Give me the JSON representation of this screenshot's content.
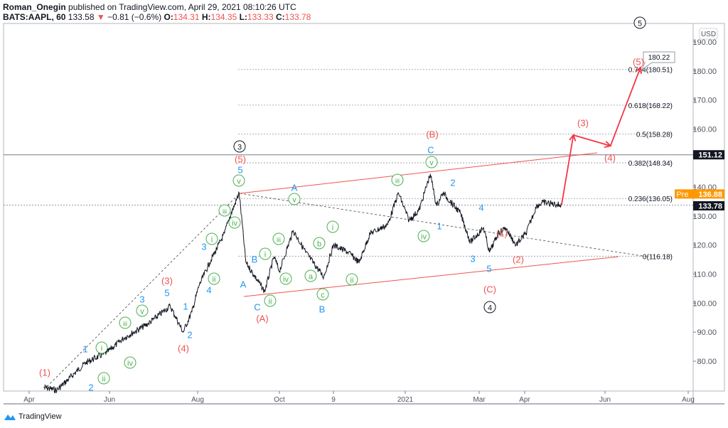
{
  "header": {
    "author": "Roman_Onegin",
    "published": "published on TradingView.com, April 29, 2021 08:10:26 UTC",
    "symbol": "BATS:AAPL, 60",
    "last": "133.58",
    "change": "−0.81 (−0.6%)",
    "open_label": "O:",
    "open": "134.31",
    "high_label": "H:",
    "high": "134.35",
    "low_label": "L:",
    "low": "133.33",
    "close_label": "C:",
    "close": "133.78"
  },
  "footer": {
    "brand": "TradingView"
  },
  "colors": {
    "red": "#ef5350",
    "blue": "#2196f3",
    "green": "#4caf50",
    "black": "#131722",
    "pre": "#ff9800"
  },
  "chart_data": {
    "type": "line",
    "currency": "USD",
    "y_ticks": [
      "190.00",
      "180.00",
      "170.00",
      "160.00",
      "140.00",
      "130.00",
      "120.00",
      "110.00",
      "100.00",
      "90.00",
      "80.00"
    ],
    "x_ticks": [
      "Apr",
      "Jun",
      "Aug",
      "Oct",
      "9",
      "2021",
      "Mar",
      "Apr",
      "Jun",
      "Aug"
    ],
    "ylim": [
      71,
      196
    ],
    "series": [
      {
        "points": [
          [
            "2020-04-12",
            71
          ],
          [
            "2020-04-22",
            70
          ],
          [
            "2020-05-14",
            79.5
          ],
          [
            "2020-05-30",
            83
          ],
          [
            "2020-06-11",
            88
          ],
          [
            "2020-06-28",
            93
          ],
          [
            "2020-07-13",
            99
          ],
          [
            "2020-07-22",
            90
          ],
          [
            "2020-07-28",
            97
          ],
          [
            "2020-08-02",
            106
          ],
          [
            "2020-08-10",
            114
          ],
          [
            "2020-08-21",
            124
          ],
          [
            "2020-08-24",
            128.5
          ],
          [
            "2020-09-01",
            138
          ],
          [
            "2020-09-06",
            114
          ],
          [
            "2020-09-20",
            104
          ],
          [
            "2020-09-27",
            116
          ],
          [
            "2020-10-01",
            111
          ],
          [
            "2020-10-11",
            125
          ],
          [
            "2020-10-20",
            117.5
          ],
          [
            "2020-11-02",
            109
          ],
          [
            "2020-11-09",
            120
          ],
          [
            "2020-11-20",
            117.5
          ],
          [
            "2020-11-28",
            114
          ],
          [
            "2020-12-06",
            124
          ],
          [
            "2020-12-19",
            127
          ],
          [
            "2020-12-27",
            138
          ],
          [
            "2021-01-04",
            128.5
          ],
          [
            "2021-01-12",
            132
          ],
          [
            "2021-01-21",
            144.5
          ],
          [
            "2021-01-26",
            133.5
          ],
          [
            "2021-01-31",
            138
          ],
          [
            "2021-02-14",
            131
          ],
          [
            "2021-02-22",
            121
          ],
          [
            "2021-03-04",
            126
          ],
          [
            "2021-03-08",
            117.5
          ],
          [
            "2021-03-14",
            124
          ],
          [
            "2021-03-19",
            126
          ],
          [
            "2021-03-26",
            120
          ],
          [
            "2021-04-02",
            124
          ],
          [
            "2021-04-10",
            133.5
          ],
          [
            "2021-04-15",
            134.7
          ],
          [
            "2021-04-29",
            133.78
          ]
        ]
      }
    ],
    "projection": [
      [
        "2021-04-29",
        133.78
      ],
      [
        "2021-05-08",
        157.9
      ],
      [
        "2021-06-05",
        154.2
      ],
      [
        "2021-06-27",
        181.2
      ]
    ],
    "projection_label": "180.22",
    "fib_levels": [
      {
        "label": "0.764(180.51)",
        "price": 180.51
      },
      {
        "label": "0.618(168.22)",
        "price": 168.22
      },
      {
        "label": "0.5(158.28)",
        "price": 158.28
      },
      {
        "label": "0.382(148.34)",
        "price": 148.34
      },
      {
        "label": "0.236(136.05)",
        "price": 136.05
      },
      {
        "label": "0(116.18)",
        "price": 116.18
      }
    ],
    "price_lines": [
      {
        "label": "151.12",
        "price": 151.12,
        "tag": ""
      },
      {
        "label": "136.88",
        "price": 136.88,
        "tag": "Pre"
      },
      {
        "label": "133.78",
        "price": 133.78,
        "tag": ""
      }
    ],
    "wave_labels": [
      {
        "text": "3",
        "style": "circle",
        "color": "black"
      },
      {
        "text": "4",
        "style": "circle",
        "color": "black"
      },
      {
        "text": "5",
        "style": "circle",
        "color": "black"
      },
      {
        "text": "(1)",
        "color": "red"
      },
      {
        "text": "(3)",
        "color": "red"
      },
      {
        "text": "(4)",
        "color": "red"
      },
      {
        "text": "(5)",
        "color": "red"
      },
      {
        "text": "(A)",
        "color": "red"
      },
      {
        "text": "(B)",
        "color": "red"
      },
      {
        "text": "(C)",
        "color": "red"
      },
      {
        "text": "(1)",
        "color": "red"
      },
      {
        "text": "(2)",
        "color": "red"
      },
      {
        "text": "(3)",
        "color": "red"
      },
      {
        "text": "(4)",
        "color": "red"
      },
      {
        "text": "(5)",
        "color": "red"
      },
      {
        "text": "1",
        "color": "blue"
      },
      {
        "text": "2",
        "color": "blue"
      },
      {
        "text": "3",
        "color": "blue"
      },
      {
        "text": "5",
        "color": "blue"
      },
      {
        "text": "1",
        "color": "blue"
      },
      {
        "text": "2",
        "color": "blue"
      },
      {
        "text": "3",
        "color": "blue"
      },
      {
        "text": "4",
        "color": "blue"
      },
      {
        "text": "5",
        "color": "blue"
      },
      {
        "text": "A",
        "color": "blue"
      },
      {
        "text": "B",
        "color": "blue"
      },
      {
        "text": "C",
        "color": "blue"
      },
      {
        "text": "A",
        "color": "blue"
      },
      {
        "text": "B",
        "color": "blue"
      },
      {
        "text": "C",
        "color": "blue"
      },
      {
        "text": "2",
        "color": "blue"
      },
      {
        "text": "4",
        "color": "blue"
      },
      {
        "text": "1",
        "color": "blue"
      },
      {
        "text": "3",
        "color": "blue"
      },
      {
        "text": "5",
        "color": "blue"
      },
      {
        "text": "i",
        "style": "circle",
        "color": "green"
      },
      {
        "text": "ii",
        "style": "circle",
        "color": "green"
      },
      {
        "text": "iii",
        "style": "circle",
        "color": "green"
      },
      {
        "text": "iv",
        "style": "circle",
        "color": "green"
      },
      {
        "text": "v",
        "style": "circle",
        "color": "green"
      },
      {
        "text": "i",
        "style": "circle",
        "color": "green"
      },
      {
        "text": "ii",
        "style": "circle",
        "color": "green"
      },
      {
        "text": "iii",
        "style": "circle",
        "color": "green"
      },
      {
        "text": "iv",
        "style": "circle",
        "color": "green"
      },
      {
        "text": "v",
        "style": "circle",
        "color": "green"
      },
      {
        "text": "i",
        "style": "circle",
        "color": "green"
      },
      {
        "text": "ii",
        "style": "circle",
        "color": "green"
      },
      {
        "text": "iii",
        "style": "circle",
        "color": "green"
      },
      {
        "text": "iv",
        "style": "circle",
        "color": "green"
      },
      {
        "text": "v",
        "style": "circle",
        "color": "green"
      },
      {
        "text": "a",
        "style": "circle",
        "color": "green"
      },
      {
        "text": "b",
        "style": "circle",
        "color": "green"
      },
      {
        "text": "c",
        "style": "circle",
        "color": "green"
      },
      {
        "text": "i",
        "style": "circle",
        "color": "green"
      },
      {
        "text": "ii",
        "style": "circle",
        "color": "green"
      },
      {
        "text": "iii",
        "style": "circle",
        "color": "green"
      },
      {
        "text": "iv",
        "style": "circle",
        "color": "green"
      },
      {
        "text": "v",
        "style": "circle",
        "color": "green"
      }
    ]
  }
}
